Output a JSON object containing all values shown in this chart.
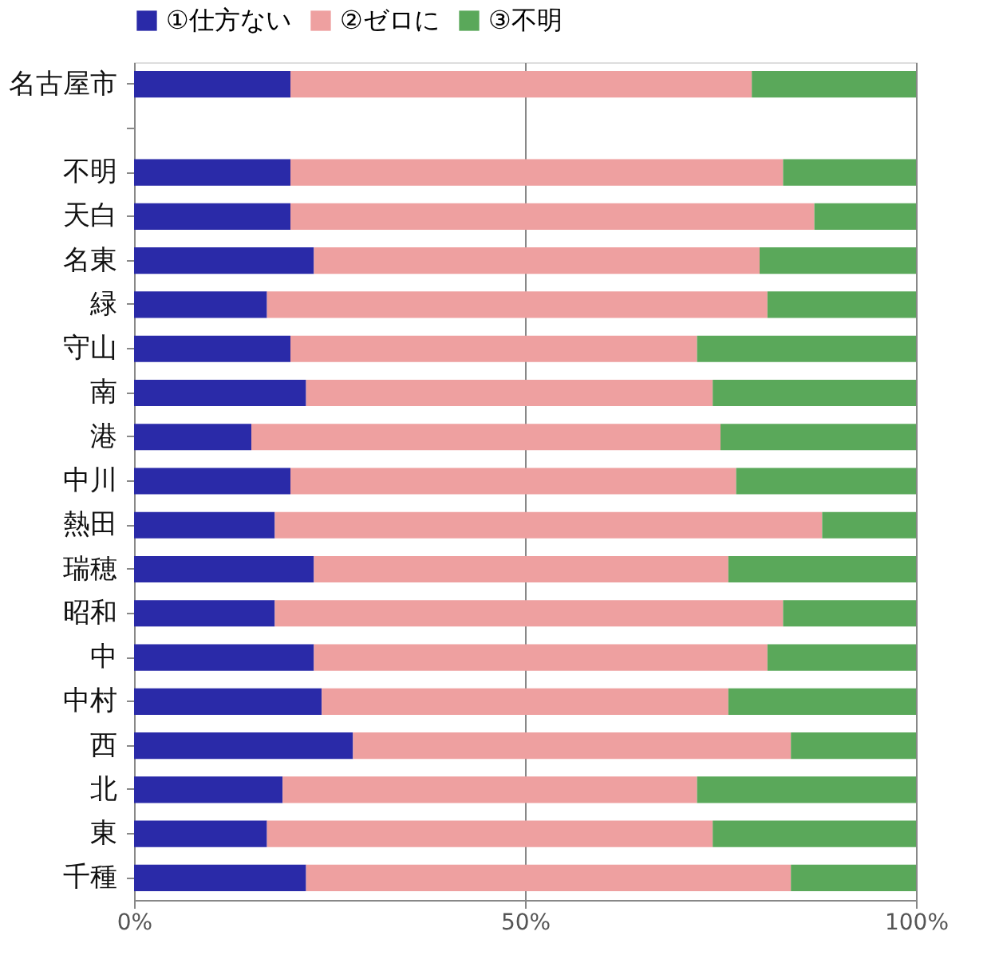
{
  "chart_data": {
    "type": "bar",
    "orientation": "horizontal",
    "stacked": true,
    "categories": [
      "名古屋市",
      null,
      "不明",
      "天白",
      "名東",
      "緑",
      "守山",
      "南",
      "港",
      "中川",
      "熱田",
      "瑞穂",
      "昭和",
      "中",
      "中村",
      "西",
      "北",
      "東",
      "千種"
    ],
    "series": [
      {
        "name": "①仕方ない",
        "color": "#2a2aa8",
        "values": [
          20,
          null,
          20,
          20,
          23,
          17,
          20,
          22,
          15,
          20,
          18,
          23,
          18,
          23,
          24,
          28,
          19,
          17,
          22
        ]
      },
      {
        "name": "②ゼロに",
        "color": "#eea0a0",
        "values": [
          59,
          null,
          63,
          67,
          57,
          64,
          52,
          52,
          60,
          57,
          70,
          53,
          65,
          58,
          52,
          56,
          53,
          57,
          62
        ]
      },
      {
        "name": "③不明",
        "color": "#5aa85a",
        "values": [
          21,
          null,
          17,
          13,
          20,
          19,
          28,
          26,
          25,
          23,
          12,
          24,
          17,
          19,
          24,
          16,
          28,
          26,
          16
        ]
      }
    ],
    "xlim": [
      0,
      100
    ],
    "xticks": [
      {
        "value": 0,
        "label": "0%"
      },
      {
        "value": 50,
        "label": "50%"
      },
      {
        "value": 100,
        "label": "100%"
      }
    ],
    "grid": "x",
    "legend": "top"
  }
}
